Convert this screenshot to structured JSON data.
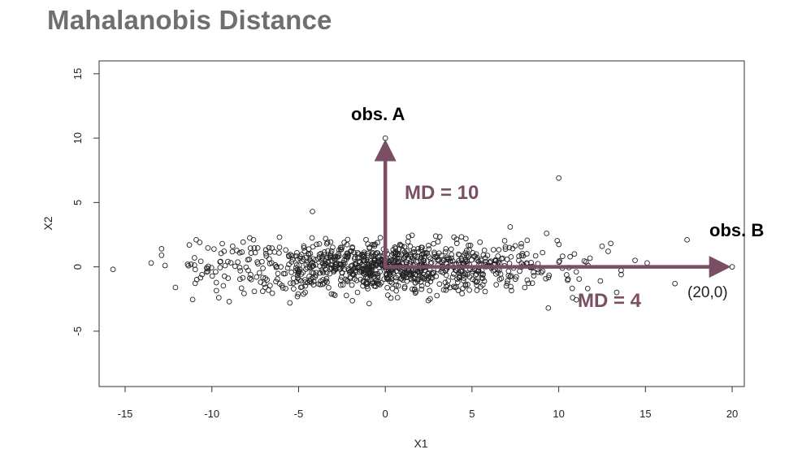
{
  "title": "Mahalanobis Distance",
  "colors": {
    "title": "#6f6f6f",
    "arrow": "#7a4e65",
    "points": "#222222"
  },
  "chart_data": {
    "type": "scatter",
    "title": "Mahalanobis Distance",
    "xlabel": "X1",
    "ylabel": "X2",
    "xlim": [
      -16.5,
      20.7
    ],
    "ylim": [
      -9.3,
      16
    ],
    "xticks": [
      -15,
      -10,
      -5,
      0,
      5,
      10,
      15,
      20
    ],
    "yticks": [
      -5,
      0,
      5,
      10,
      15
    ],
    "grid": false,
    "series": [
      {
        "marker": "open-circle",
        "distribution": {
          "n": 1000,
          "center": [
            0,
            0
          ],
          "sd_x": 4.9,
          "sd_y": 1.0
        },
        "points": [
          {
            "x": -15.7,
            "y": -0.2
          },
          {
            "x": -13.5,
            "y": 0.3
          },
          {
            "x": -12.9,
            "y": 1.4
          },
          {
            "x": -12.9,
            "y": 0.9
          },
          {
            "x": -12.7,
            "y": 0.1
          },
          {
            "x": -12.1,
            "y": -1.6
          },
          {
            "x": -11.4,
            "y": 0.2
          },
          {
            "x": -11.3,
            "y": 1.7
          },
          {
            "x": -10.9,
            "y": 2.1
          },
          {
            "x": -10.7,
            "y": 1.9
          },
          {
            "x": -11.0,
            "y": 0.7
          },
          {
            "x": -10.3,
            "y": -0.4
          },
          {
            "x": -9.4,
            "y": 1.8
          },
          {
            "x": -9.6,
            "y": -2.4
          },
          {
            "x": -9.0,
            "y": -2.7
          },
          {
            "x": -8.8,
            "y": 1.6
          },
          {
            "x": -7.6,
            "y": 2.1
          },
          {
            "x": -6.1,
            "y": 2.3
          },
          {
            "x": -5.5,
            "y": -2.8
          },
          {
            "x": -4.2,
            "y": 4.3
          },
          {
            "x": 0,
            "y": 10
          },
          {
            "x": 10.0,
            "y": 6.9
          },
          {
            "x": 17.4,
            "y": 2.1
          },
          {
            "x": 16.7,
            "y": -1.3
          },
          {
            "x": 15.1,
            "y": 0.3
          },
          {
            "x": 14.4,
            "y": 0.5
          },
          {
            "x": 13.6,
            "y": -0.6
          },
          {
            "x": 12.5,
            "y": 1.6
          },
          {
            "x": 12.4,
            "y": -1.1
          },
          {
            "x": 10.8,
            "y": -2.4
          },
          {
            "x": 9.4,
            "y": -3.2
          },
          {
            "x": 7.2,
            "y": 3.1
          },
          {
            "x": 9.3,
            "y": 2.6
          },
          {
            "x": 20,
            "y": 0
          }
        ]
      }
    ],
    "annotations": [
      {
        "id": "obs-a",
        "text": "obs. A"
      },
      {
        "id": "obs-b",
        "text": "obs. B"
      },
      {
        "id": "md-a",
        "text": "MD = 10",
        "arrow": {
          "from": [
            0,
            0
          ],
          "to": [
            0,
            10
          ]
        }
      },
      {
        "id": "md-b",
        "text": "MD = 4",
        "arrow": {
          "from": [
            0,
            0
          ],
          "to": [
            20,
            0
          ]
        }
      },
      {
        "id": "coord-b",
        "text": "(20,0)"
      }
    ]
  }
}
